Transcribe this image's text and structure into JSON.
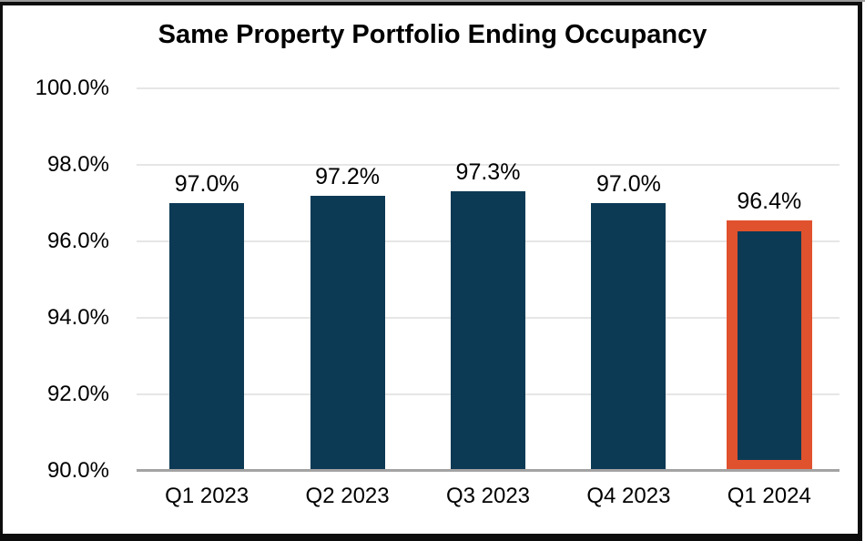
{
  "chart_data": {
    "type": "bar",
    "title": "Same Property Portfolio Ending Occupancy",
    "categories": [
      "Q1 2023",
      "Q2 2023",
      "Q3 2023",
      "Q4 2023",
      "Q1 2024"
    ],
    "values": [
      97.0,
      97.2,
      97.3,
      97.0,
      96.4
    ],
    "value_labels": [
      "97.0%",
      "97.2%",
      "97.3%",
      "97.0%",
      "96.4%"
    ],
    "highlighted_index": 4,
    "xlabel": "",
    "ylabel": "",
    "ylim": [
      90,
      100
    ],
    "yticks": [
      100.0,
      98.0,
      96.0,
      94.0,
      92.0,
      90.0
    ],
    "ytick_labels": [
      "100.0%",
      "98.0%",
      "96.0%",
      "94.0%",
      "92.0%",
      "90.0%"
    ],
    "grid": true,
    "legend": "none",
    "colors": {
      "bar": "#0c3a55",
      "highlight_border": "#e0512d",
      "gridline": "#e6e6e6",
      "axis_line": "#a3a3a3",
      "text": "#000000",
      "frame_border": "#0d0d0d",
      "background": "#ffffff"
    }
  }
}
